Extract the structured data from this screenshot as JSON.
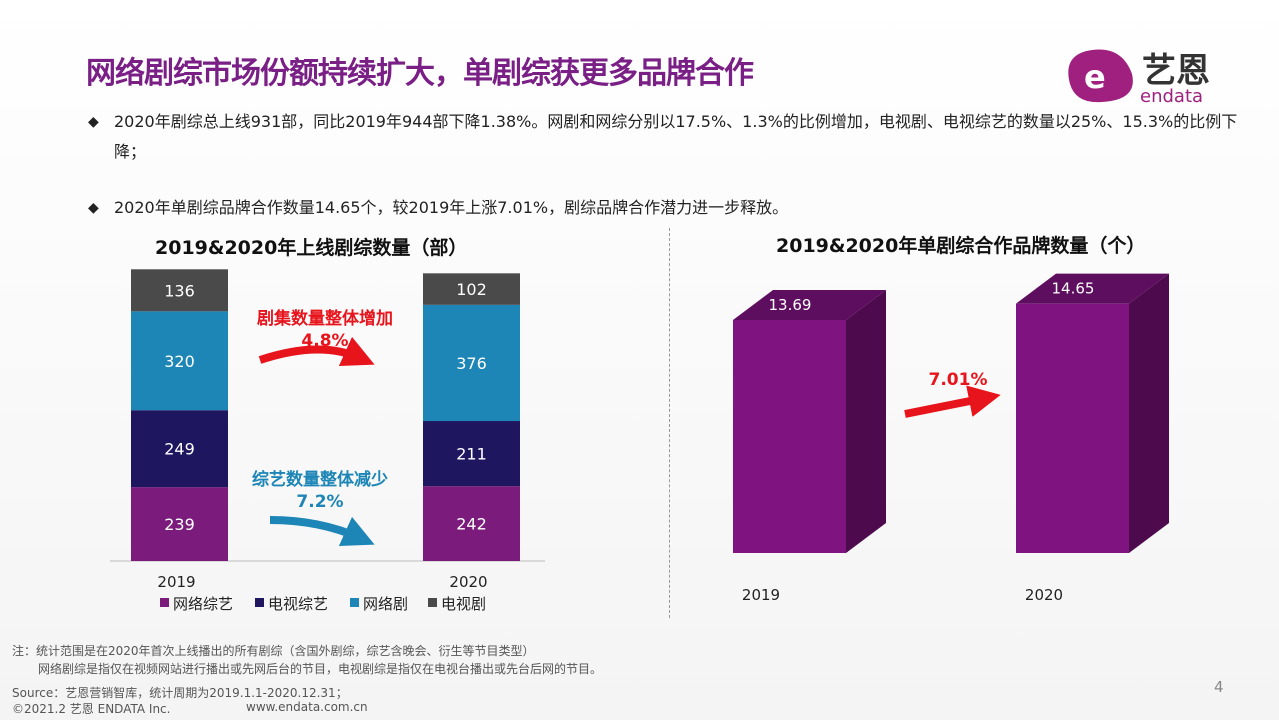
{
  "title": "网络剧综市场份额持续扩大，单剧综获更多品牌合作",
  "logo": {
    "text_cn": "艺恩",
    "text_en": "endata",
    "color": "#a0207f"
  },
  "bullets": [
    "2020年剧综总上线931部，同比2019年944部下降1.38%。网剧和网综分别以17.5%、1.3%的比例增加，电视剧、电视综艺的数量以25%、15.3%的比例下降；",
    "2020年单剧综品牌合作数量14.65个，较2019年上涨7.01%，剧综品牌合作潜力进一步释放。"
  ],
  "bullet_icon": "diamond-icon",
  "chart_data": [
    {
      "type": "bar",
      "stacked": true,
      "title": "2019&2020年上线剧综数量（部）",
      "categories": [
        "2019",
        "2020"
      ],
      "series": [
        {
          "name": "网络综艺",
          "values": [
            239,
            242
          ],
          "color": "#7b1c7d"
        },
        {
          "name": "电视综艺",
          "values": [
            249,
            211
          ],
          "color": "#1f1660"
        },
        {
          "name": "网络剧",
          "values": [
            320,
            376
          ],
          "color": "#1d86b6"
        },
        {
          "name": "电视剧",
          "values": [
            136,
            102
          ],
          "color": "#4a4a4a"
        }
      ],
      "legend": "bottom",
      "annotations": [
        {
          "text": "剧集数量整体增加",
          "value": "4.8%",
          "color": "#e8141c"
        },
        {
          "text": "综艺数量整体减少",
          "value": "7.2%",
          "color": "#1d86b6"
        }
      ]
    },
    {
      "type": "bar",
      "style": "3d",
      "title": "2019&2020年单剧综合作品牌数量（个）",
      "categories": [
        "2019",
        "2020"
      ],
      "values": [
        13.69,
        14.65
      ],
      "color": "#7f137f",
      "annotations": [
        {
          "value": "7.01%",
          "color": "#e8141c"
        }
      ]
    }
  ],
  "notes": [
    "注：统计范围是在2020年首次上线播出的所有剧综（含国外剧综，综艺含晚会、衍生等节目类型）",
    "网络剧综是指仅在视频网站进行播出或先网后台的节目，电视剧综是指仅在电视台播出或先台后网的节目。"
  ],
  "source": "Source：艺恩营销智库，统计周期为2019.1.1-2020.12.31；",
  "copyright": "©2021.2 艺恩 ENDATA Inc.",
  "website": "www.endata.com.cn",
  "page_number": "4"
}
